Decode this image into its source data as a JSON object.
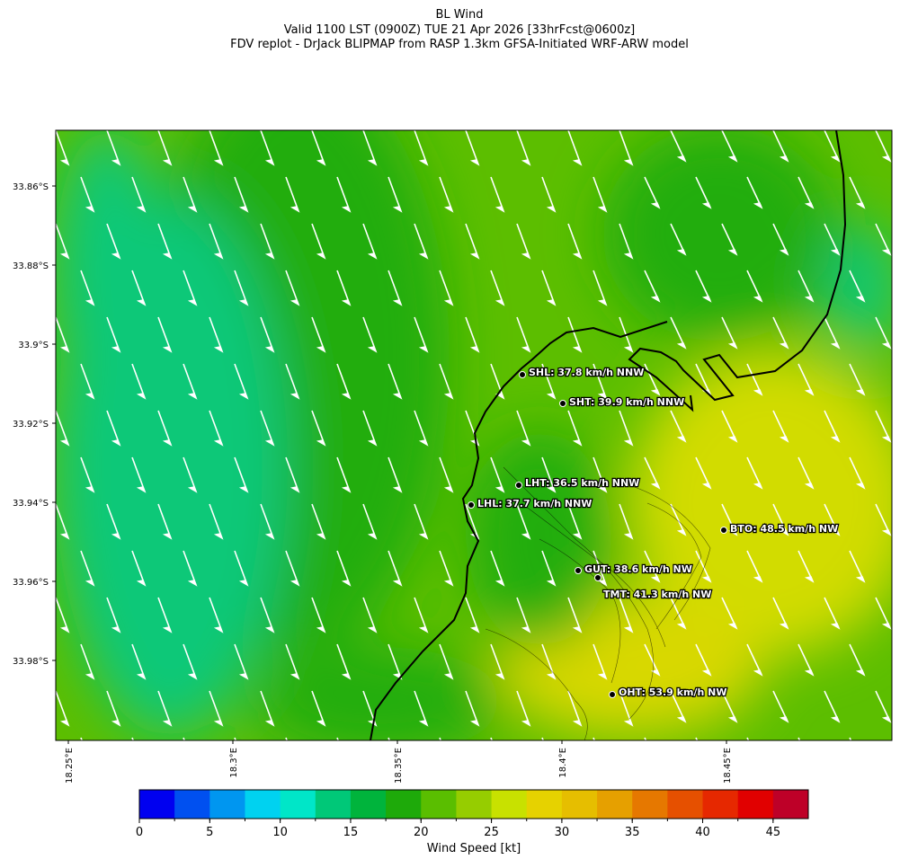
{
  "header": {
    "title": "BL Wind",
    "subtitle": "Valid 1100 LST (0900Z) TUE 21 Apr 2026 [33hrFcst@0600z]",
    "source": "FDV replot - DrJack BLIPMAP from RASP 1.3km GFSA-Initiated WRF-ARW model"
  },
  "map": {
    "lat_ticks": [
      "33.86°S",
      "33.88°S",
      "33.9°S",
      "33.92°S",
      "33.94°S",
      "33.96°S",
      "33.98°S"
    ],
    "lon_ticks": [
      "18.25°E",
      "18.3°E",
      "18.35°E",
      "18.4°E",
      "18.45°E"
    ],
    "stations": [
      {
        "label": "SHL: 37.8 km/h NNW"
      },
      {
        "label": "SHT: 39.9 km/h NNW"
      },
      {
        "label": "LHT: 36.5 km/h NNW"
      },
      {
        "label": "LHL: 37.7 km/h NNW"
      },
      {
        "label": "BTO: 48.5 km/h NW"
      },
      {
        "label": "GUT: 38.6 km/h NW"
      },
      {
        "label": "TMT: 41.3 km/h NW"
      },
      {
        "label": "OHT: 53.9 km/h NW"
      }
    ]
  },
  "colorbar": {
    "range": [
      0,
      47.5
    ],
    "ticks": [
      0,
      5,
      10,
      15,
      20,
      25,
      30,
      35,
      40,
      45
    ],
    "label": "Wind Speed [kt]",
    "colors": [
      "#0000f0",
      "#0050f0",
      "#0096f0",
      "#00d2f0",
      "#00e6c8",
      "#00c878",
      "#00b43c",
      "#1eaa0a",
      "#5abe00",
      "#96cd00",
      "#c8e100",
      "#e6d200",
      "#e6be00",
      "#e6a000",
      "#e67800",
      "#e65000",
      "#e62800",
      "#e10000",
      "#be0028"
    ]
  }
}
